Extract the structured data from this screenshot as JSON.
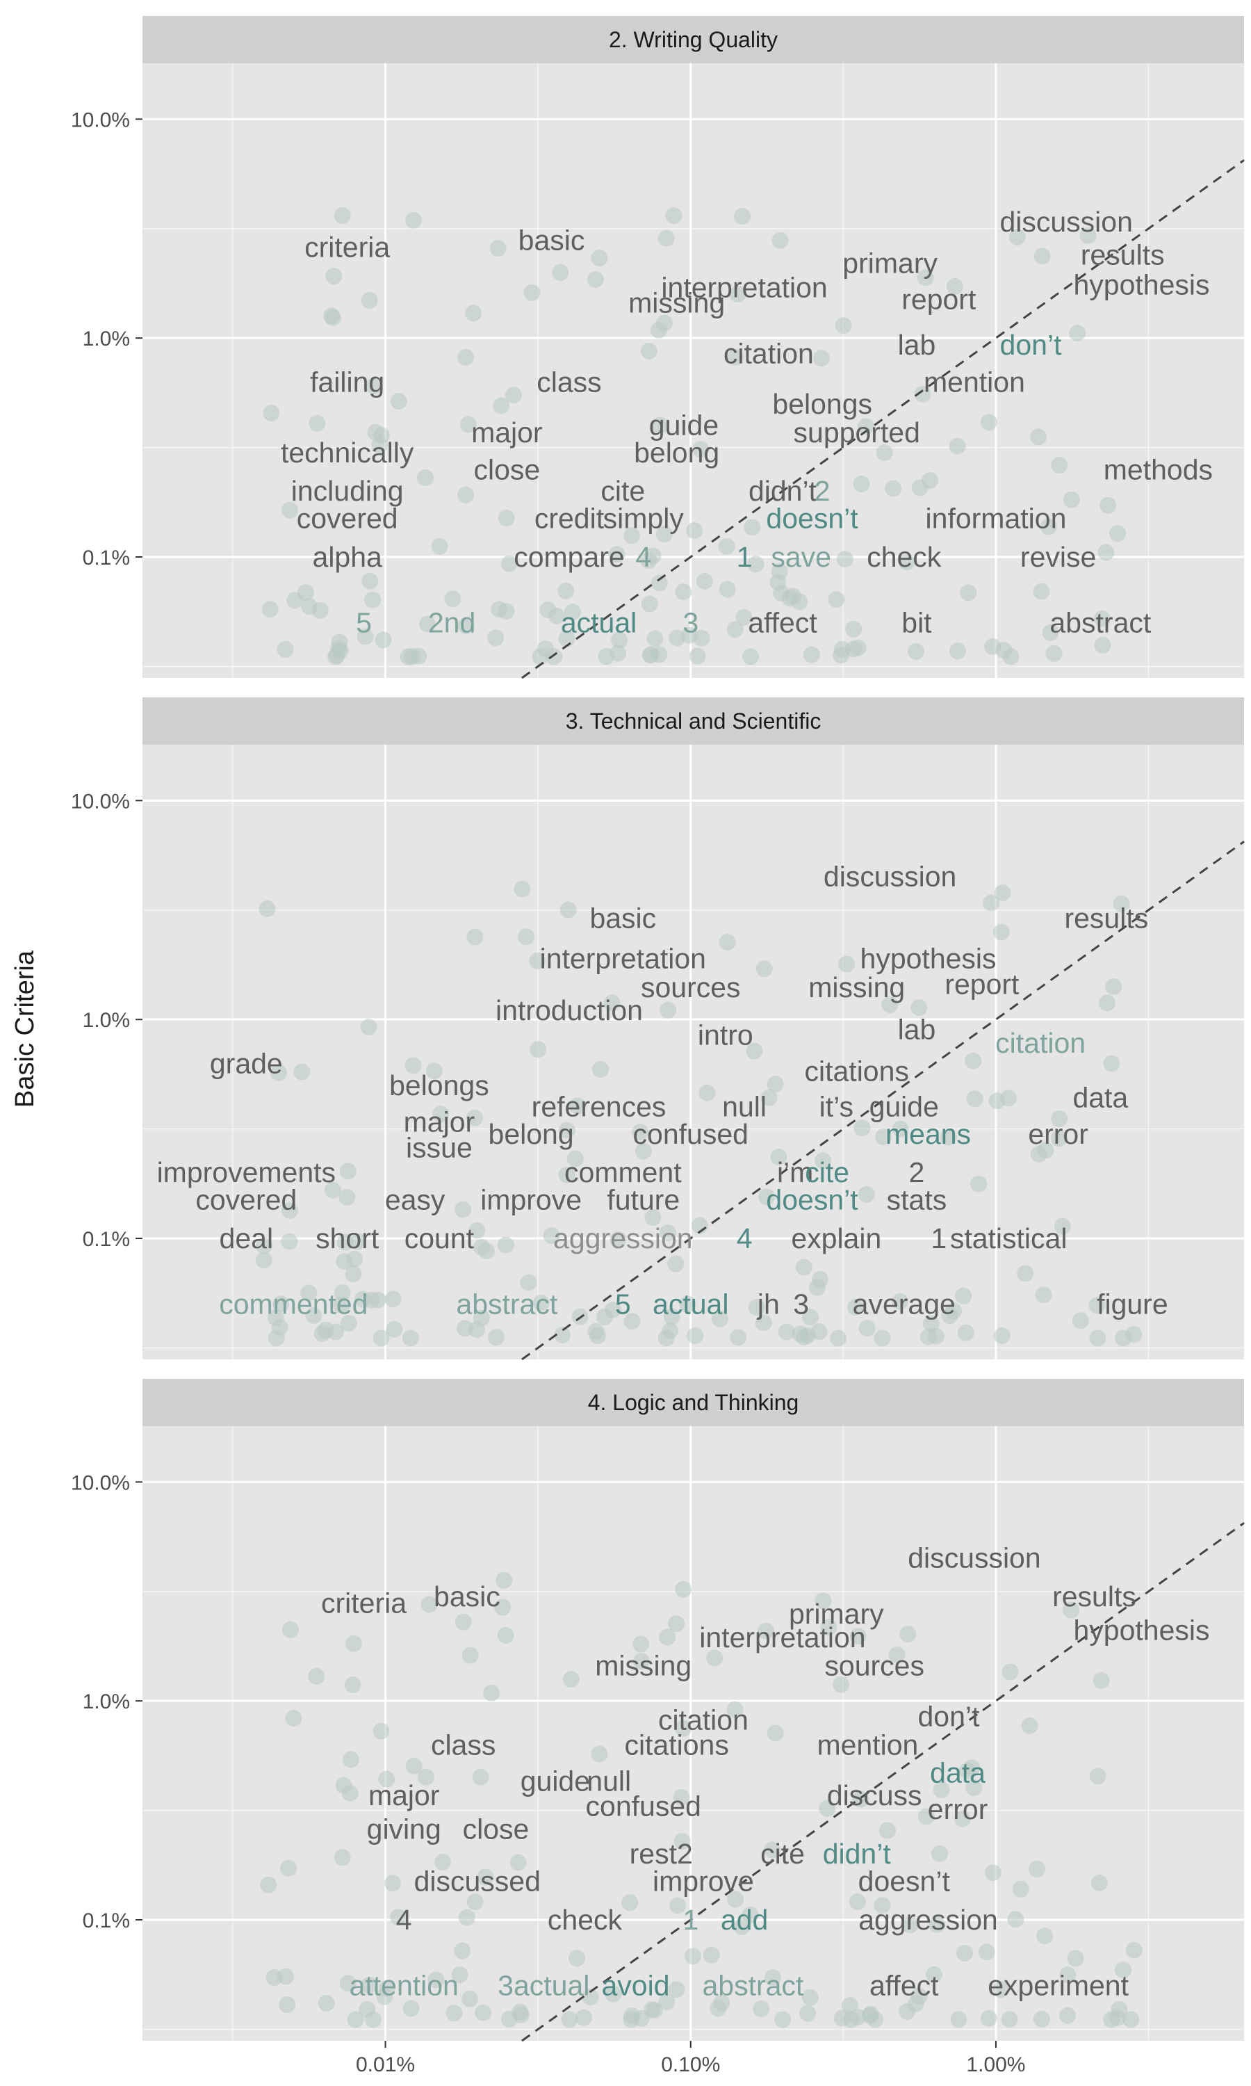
{
  "y_axis_title": "Basic Criteria",
  "y_ticks": [
    "10.0%",
    "1.0%",
    "0.1%"
  ],
  "x_ticks": [
    "0.01%",
    "0.10%",
    "1.00%"
  ],
  "colors": {
    "panel_bg": "#e5e5e5",
    "strip_bg": "#d0d0d0",
    "grid": "#ffffff",
    "point": "#b8c8c2",
    "word_gray": "#5f5f5f",
    "word_teal": "#4f8a84",
    "word_lightteal": "#7fa39d",
    "word_lightgray": "#8e8e8e",
    "diagonal": "#444444"
  },
  "chart_data": [
    {
      "type": "scatter",
      "title": "2. Writing Quality",
      "scale": "log10",
      "words": [
        {
          "w": "discussion",
          "x": 1.7,
          "y": 3.4,
          "c": "gray"
        },
        {
          "w": "results",
          "x": 2.6,
          "y": 2.4,
          "c": "gray"
        },
        {
          "w": "hypothesis",
          "x": 3.0,
          "y": 1.75,
          "c": "gray"
        },
        {
          "w": "primary",
          "x": 0.45,
          "y": 2.2,
          "c": "gray"
        },
        {
          "w": "criteria",
          "x": 0.0075,
          "y": 2.6,
          "c": "gray"
        },
        {
          "w": "basic",
          "x": 0.035,
          "y": 2.8,
          "c": "gray"
        },
        {
          "w": "interpretation",
          "x": 0.15,
          "y": 1.7,
          "c": "gray"
        },
        {
          "w": "missing",
          "x": 0.09,
          "y": 1.45,
          "c": "gray"
        },
        {
          "w": "report",
          "x": 0.65,
          "y": 1.5,
          "c": "gray"
        },
        {
          "w": "citation",
          "x": 0.18,
          "y": 0.85,
          "c": "gray"
        },
        {
          "w": "lab",
          "x": 0.55,
          "y": 0.93,
          "c": "gray"
        },
        {
          "w": "don’t",
          "x": 1.3,
          "y": 0.93,
          "c": "teal"
        },
        {
          "w": "failing",
          "x": 0.0075,
          "y": 0.63,
          "c": "gray"
        },
        {
          "w": "class",
          "x": 0.04,
          "y": 0.63,
          "c": "gray"
        },
        {
          "w": "mention",
          "x": 0.85,
          "y": 0.63,
          "c": "gray"
        },
        {
          "w": "belongs",
          "x": 0.27,
          "y": 0.5,
          "c": "gray"
        },
        {
          "w": "guide",
          "x": 0.095,
          "y": 0.4,
          "c": "gray"
        },
        {
          "w": "major",
          "x": 0.025,
          "y": 0.37,
          "c": "gray"
        },
        {
          "w": "supported",
          "x": 0.35,
          "y": 0.37,
          "c": "gray"
        },
        {
          "w": "technically",
          "x": 0.0075,
          "y": 0.3,
          "c": "gray"
        },
        {
          "w": "belong",
          "x": 0.09,
          "y": 0.3,
          "c": "gray"
        },
        {
          "w": "close",
          "x": 0.025,
          "y": 0.25,
          "c": "gray"
        },
        {
          "w": "methods",
          "x": 3.4,
          "y": 0.25,
          "c": "gray"
        },
        {
          "w": "including",
          "x": 0.0075,
          "y": 0.2,
          "c": "gray"
        },
        {
          "w": "cite",
          "x": 0.06,
          "y": 0.2,
          "c": "gray"
        },
        {
          "w": "didn’t",
          "x": 0.2,
          "y": 0.2,
          "c": "gray"
        },
        {
          "w": "2",
          "x": 0.27,
          "y": 0.2,
          "c": "lightteal"
        },
        {
          "w": "covered",
          "x": 0.0075,
          "y": 0.15,
          "c": "gray"
        },
        {
          "w": "credit",
          "x": 0.04,
          "y": 0.15,
          "c": "gray"
        },
        {
          "w": "simply",
          "x": 0.07,
          "y": 0.15,
          "c": "gray"
        },
        {
          "w": "doesn’t",
          "x": 0.25,
          "y": 0.15,
          "c": "teal"
        },
        {
          "w": "information",
          "x": 1.0,
          "y": 0.15,
          "c": "gray"
        },
        {
          "w": "alpha",
          "x": 0.0075,
          "y": 0.1,
          "c": "gray"
        },
        {
          "w": "compare",
          "x": 0.04,
          "y": 0.1,
          "c": "gray"
        },
        {
          "w": "4",
          "x": 0.07,
          "y": 0.1,
          "c": "lightteal"
        },
        {
          "w": "1",
          "x": 0.15,
          "y": 0.1,
          "c": "teal"
        },
        {
          "w": "save",
          "x": 0.23,
          "y": 0.1,
          "c": "lightteal"
        },
        {
          "w": "check",
          "x": 0.5,
          "y": 0.1,
          "c": "gray"
        },
        {
          "w": "revise",
          "x": 1.6,
          "y": 0.1,
          "c": "gray"
        },
        {
          "w": "5",
          "x": 0.0085,
          "y": 0.05,
          "c": "lightteal"
        },
        {
          "w": "2nd",
          "x": 0.0165,
          "y": 0.05,
          "c": "lightteal"
        },
        {
          "w": "actual",
          "x": 0.05,
          "y": 0.05,
          "c": "teal"
        },
        {
          "w": "3",
          "x": 0.1,
          "y": 0.05,
          "c": "lightteal"
        },
        {
          "w": "affect",
          "x": 0.2,
          "y": 0.05,
          "c": "gray"
        },
        {
          "w": "bit",
          "x": 0.55,
          "y": 0.05,
          "c": "gray"
        },
        {
          "w": "abstract",
          "x": 2.2,
          "y": 0.05,
          "c": "gray"
        }
      ]
    },
    {
      "type": "scatter",
      "title": "3. Technical and Scientific",
      "scale": "log10",
      "words": [
        {
          "w": "discussion",
          "x": 0.45,
          "y": 4.5,
          "c": "gray"
        },
        {
          "w": "results",
          "x": 2.3,
          "y": 2.9,
          "c": "gray"
        },
        {
          "w": "basic",
          "x": 0.06,
          "y": 2.9,
          "c": "gray"
        },
        {
          "w": "hypothesis",
          "x": 0.6,
          "y": 1.9,
          "c": "gray"
        },
        {
          "w": "interpretation",
          "x": 0.06,
          "y": 1.9,
          "c": "gray"
        },
        {
          "w": "report",
          "x": 0.9,
          "y": 1.45,
          "c": "gray"
        },
        {
          "w": "sources",
          "x": 0.1,
          "y": 1.4,
          "c": "gray"
        },
        {
          "w": "missing",
          "x": 0.35,
          "y": 1.4,
          "c": "gray"
        },
        {
          "w": "introduction",
          "x": 0.04,
          "y": 1.1,
          "c": "gray"
        },
        {
          "w": "intro",
          "x": 0.13,
          "y": 0.85,
          "c": "gray"
        },
        {
          "w": "lab",
          "x": 0.55,
          "y": 0.9,
          "c": "gray"
        },
        {
          "w": "citation",
          "x": 1.4,
          "y": 0.78,
          "c": "lightteal"
        },
        {
          "w": "grade",
          "x": 0.0035,
          "y": 0.63,
          "c": "gray"
        },
        {
          "w": "citations",
          "x": 0.35,
          "y": 0.58,
          "c": "gray"
        },
        {
          "w": "belongs",
          "x": 0.015,
          "y": 0.5,
          "c": "gray"
        },
        {
          "w": "data",
          "x": 2.2,
          "y": 0.44,
          "c": "gray"
        },
        {
          "w": "references",
          "x": 0.05,
          "y": 0.4,
          "c": "gray"
        },
        {
          "w": "null",
          "x": 0.15,
          "y": 0.4,
          "c": "gray"
        },
        {
          "w": "it’s",
          "x": 0.3,
          "y": 0.4,
          "c": "gray"
        },
        {
          "w": "guide",
          "x": 0.5,
          "y": 0.4,
          "c": "gray"
        },
        {
          "w": "major",
          "x": 0.015,
          "y": 0.34,
          "c": "gray"
        },
        {
          "w": "belong",
          "x": 0.03,
          "y": 0.3,
          "c": "gray"
        },
        {
          "w": "confused",
          "x": 0.1,
          "y": 0.3,
          "c": "gray"
        },
        {
          "w": "means",
          "x": 0.6,
          "y": 0.3,
          "c": "teal"
        },
        {
          "w": "error",
          "x": 1.6,
          "y": 0.3,
          "c": "gray"
        },
        {
          "w": "issue",
          "x": 0.015,
          "y": 0.26,
          "c": "gray"
        },
        {
          "w": "improvements",
          "x": 0.0035,
          "y": 0.2,
          "c": "gray"
        },
        {
          "w": "comment",
          "x": 0.06,
          "y": 0.2,
          "c": "gray"
        },
        {
          "w": "i’m",
          "x": 0.22,
          "y": 0.2,
          "c": "gray"
        },
        {
          "w": "cite",
          "x": 0.28,
          "y": 0.2,
          "c": "teal"
        },
        {
          "w": "2",
          "x": 0.55,
          "y": 0.2,
          "c": "gray"
        },
        {
          "w": "covered",
          "x": 0.0035,
          "y": 0.15,
          "c": "gray"
        },
        {
          "w": "easy",
          "x": 0.0125,
          "y": 0.15,
          "c": "gray"
        },
        {
          "w": "improve",
          "x": 0.03,
          "y": 0.15,
          "c": "gray"
        },
        {
          "w": "future",
          "x": 0.07,
          "y": 0.15,
          "c": "gray"
        },
        {
          "w": "doesn’t",
          "x": 0.25,
          "y": 0.15,
          "c": "teal"
        },
        {
          "w": "stats",
          "x": 0.55,
          "y": 0.15,
          "c": "gray"
        },
        {
          "w": "deal",
          "x": 0.0035,
          "y": 0.1,
          "c": "gray"
        },
        {
          "w": "short",
          "x": 0.0075,
          "y": 0.1,
          "c": "gray"
        },
        {
          "w": "count",
          "x": 0.015,
          "y": 0.1,
          "c": "gray"
        },
        {
          "w": "aggression",
          "x": 0.06,
          "y": 0.1,
          "c": "lightgray"
        },
        {
          "w": "4",
          "x": 0.15,
          "y": 0.1,
          "c": "teal"
        },
        {
          "w": "explain",
          "x": 0.3,
          "y": 0.1,
          "c": "gray"
        },
        {
          "w": "1",
          "x": 0.65,
          "y": 0.1,
          "c": "gray"
        },
        {
          "w": "statistical",
          "x": 1.1,
          "y": 0.1,
          "c": "gray"
        },
        {
          "w": "commented",
          "x": 0.005,
          "y": 0.05,
          "c": "lightteal"
        },
        {
          "w": "abstract",
          "x": 0.025,
          "y": 0.05,
          "c": "lightteal"
        },
        {
          "w": "5",
          "x": 0.06,
          "y": 0.05,
          "c": "teal"
        },
        {
          "w": "actual",
          "x": 0.1,
          "y": 0.05,
          "c": "teal"
        },
        {
          "w": "jh",
          "x": 0.18,
          "y": 0.05,
          "c": "gray"
        },
        {
          "w": "3",
          "x": 0.23,
          "y": 0.05,
          "c": "gray"
        },
        {
          "w": "average",
          "x": 0.5,
          "y": 0.05,
          "c": "gray"
        },
        {
          "w": "figure",
          "x": 2.8,
          "y": 0.05,
          "c": "gray"
        }
      ]
    },
    {
      "type": "scatter",
      "title": "4. Logic and Thinking",
      "scale": "log10",
      "words": [
        {
          "w": "discussion",
          "x": 0.85,
          "y": 4.5,
          "c": "gray"
        },
        {
          "w": "results",
          "x": 2.1,
          "y": 3.0,
          "c": "gray"
        },
        {
          "w": "hypothesis",
          "x": 3.0,
          "y": 2.1,
          "c": "gray"
        },
        {
          "w": "criteria",
          "x": 0.0085,
          "y": 2.8,
          "c": "gray"
        },
        {
          "w": "basic",
          "x": 0.0185,
          "y": 3.0,
          "c": "gray"
        },
        {
          "w": "primary",
          "x": 0.3,
          "y": 2.5,
          "c": "gray"
        },
        {
          "w": "interpretation",
          "x": 0.2,
          "y": 1.95,
          "c": "gray"
        },
        {
          "w": "sources",
          "x": 0.4,
          "y": 1.45,
          "c": "gray"
        },
        {
          "w": "missing",
          "x": 0.07,
          "y": 1.45,
          "c": "gray"
        },
        {
          "w": "don’t",
          "x": 0.7,
          "y": 0.85,
          "c": "gray"
        },
        {
          "w": "citation",
          "x": 0.11,
          "y": 0.82,
          "c": "gray"
        },
        {
          "w": "class",
          "x": 0.018,
          "y": 0.63,
          "c": "gray"
        },
        {
          "w": "citations",
          "x": 0.09,
          "y": 0.63,
          "c": "gray"
        },
        {
          "w": "mention",
          "x": 0.38,
          "y": 0.63,
          "c": "gray"
        },
        {
          "w": "data",
          "x": 0.75,
          "y": 0.47,
          "c": "teal"
        },
        {
          "w": "guide",
          "x": 0.036,
          "y": 0.43,
          "c": "gray"
        },
        {
          "w": "null",
          "x": 0.054,
          "y": 0.43,
          "c": "gray"
        },
        {
          "w": "major",
          "x": 0.0115,
          "y": 0.37,
          "c": "gray"
        },
        {
          "w": "discuss",
          "x": 0.4,
          "y": 0.37,
          "c": "gray"
        },
        {
          "w": "confused",
          "x": 0.07,
          "y": 0.33,
          "c": "gray"
        },
        {
          "w": "error",
          "x": 0.75,
          "y": 0.32,
          "c": "gray"
        },
        {
          "w": "giving",
          "x": 0.0115,
          "y": 0.26,
          "c": "gray"
        },
        {
          "w": "close",
          "x": 0.023,
          "y": 0.26,
          "c": "gray"
        },
        {
          "w": "rest2",
          "x": 0.08,
          "y": 0.2,
          "c": "gray"
        },
        {
          "w": "cite",
          "x": 0.2,
          "y": 0.2,
          "c": "gray"
        },
        {
          "w": "didn’t",
          "x": 0.35,
          "y": 0.2,
          "c": "teal"
        },
        {
          "w": "discussed",
          "x": 0.02,
          "y": 0.15,
          "c": "gray"
        },
        {
          "w": "improve",
          "x": 0.11,
          "y": 0.15,
          "c": "gray"
        },
        {
          "w": "doesn’t",
          "x": 0.5,
          "y": 0.15,
          "c": "gray"
        },
        {
          "w": "4",
          "x": 0.0115,
          "y": 0.1,
          "c": "gray"
        },
        {
          "w": "check",
          "x": 0.045,
          "y": 0.1,
          "c": "gray"
        },
        {
          "w": "1",
          "x": 0.1,
          "y": 0.1,
          "c": "lightteal"
        },
        {
          "w": "add",
          "x": 0.15,
          "y": 0.1,
          "c": "teal"
        },
        {
          "w": "aggression",
          "x": 0.6,
          "y": 0.1,
          "c": "gray"
        },
        {
          "w": "attention",
          "x": 0.0115,
          "y": 0.05,
          "c": "lightteal"
        },
        {
          "w": "3actual",
          "x": 0.033,
          "y": 0.05,
          "c": "lightteal"
        },
        {
          "w": "avoid",
          "x": 0.066,
          "y": 0.05,
          "c": "teal"
        },
        {
          "w": "abstract",
          "x": 0.16,
          "y": 0.05,
          "c": "lightteal"
        },
        {
          "w": "affect",
          "x": 0.5,
          "y": 0.05,
          "c": "gray"
        },
        {
          "w": "experiment",
          "x": 1.6,
          "y": 0.05,
          "c": "gray"
        }
      ]
    }
  ]
}
